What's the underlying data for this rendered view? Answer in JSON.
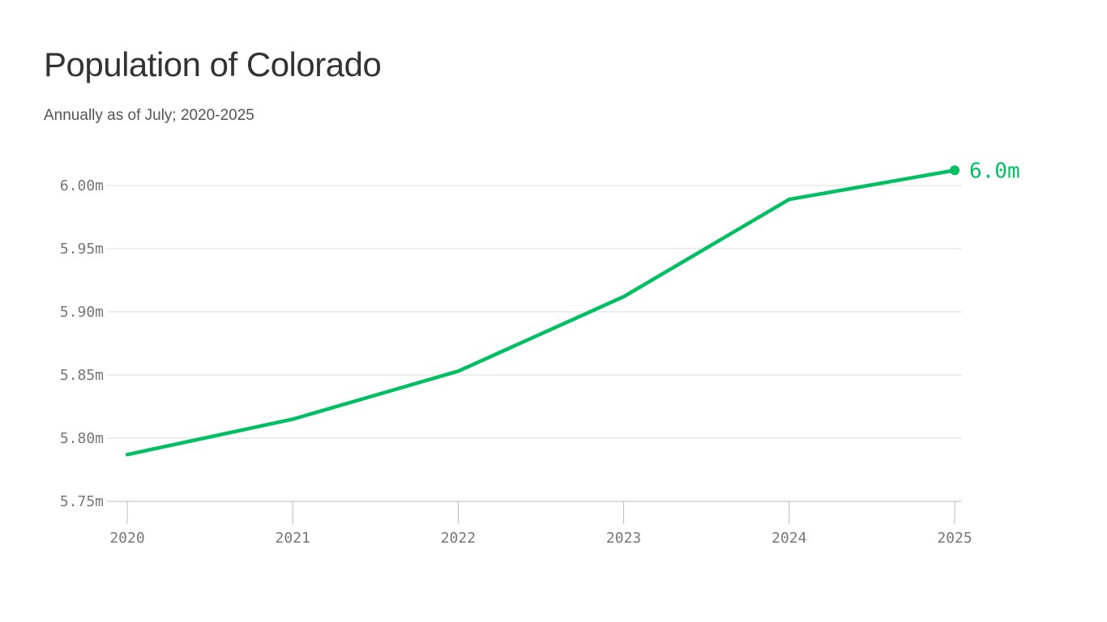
{
  "chart_data": {
    "type": "line",
    "title": "Population of Colorado",
    "subtitle": "Annually as of July; 2020-2025",
    "x": [
      2020,
      2021,
      2022,
      2023,
      2024,
      2025
    ],
    "x_tick_labels": [
      "2020",
      "2021",
      "2022",
      "2023",
      "2024",
      "2025"
    ],
    "series": [
      {
        "values": [
          5.787,
          5.815,
          5.853,
          5.912,
          5.989,
          6.012
        ]
      }
    ],
    "end_label": "6.0m",
    "ylim": [
      5.75,
      6.0
    ],
    "y_ticks": [
      5.75,
      5.8,
      5.85,
      5.9,
      5.95,
      6.0
    ],
    "y_tick_labels": [
      "5.75m",
      "5.80m",
      "5.85m",
      "5.90m",
      "5.95m",
      "6.00m"
    ],
    "grid": true,
    "line_color": "#00bf63",
    "grid_color": "#dddddd",
    "axis_color": "#bbbbbb"
  }
}
